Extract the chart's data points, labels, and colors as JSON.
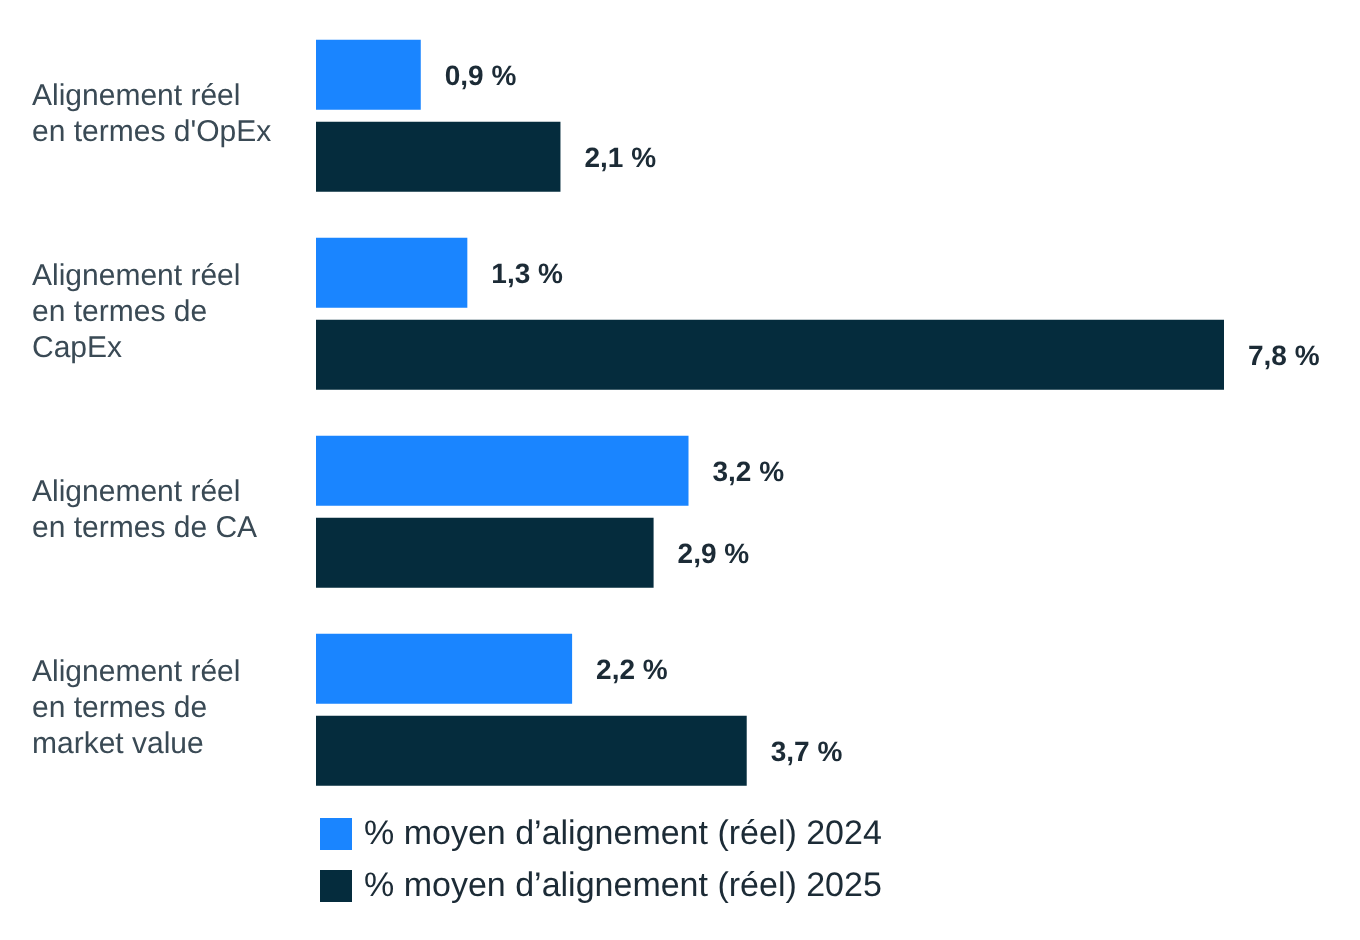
{
  "chart_data": {
    "type": "bar",
    "orientation": "horizontal",
    "categories": [
      "Alignement réel en termes d'OpEx",
      "Alignement réel en termes de CapEx",
      "Alignement réel en termes de CA",
      "Alignement réel en termes de market value"
    ],
    "series": [
      {
        "name": "% moyen d’alignement (réel) 2024",
        "color": "#1a85ff",
        "values": [
          0.9,
          1.3,
          3.2,
          2.2
        ],
        "value_labels": [
          "0,9 %",
          "1,3 %",
          "3,2 %",
          "2,2 %"
        ]
      },
      {
        "name": "% moyen d’alignement (réel) 2025",
        "color": "#052c3d",
        "values": [
          2.1,
          7.8,
          2.9,
          3.7
        ],
        "value_labels": [
          "2,1 %",
          "7,8 %",
          "2,9 %",
          "3,7 %"
        ]
      }
    ],
    "legend": "bottom left",
    "grid": false
  }
}
